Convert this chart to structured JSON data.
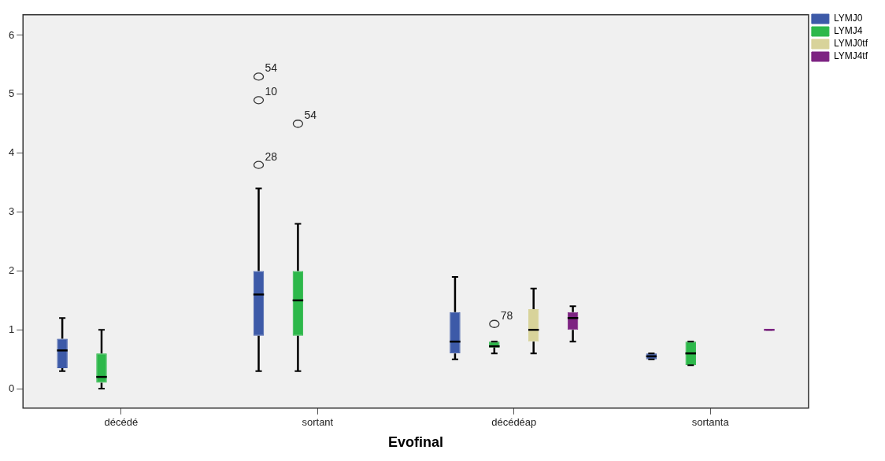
{
  "chart_data": {
    "type": "box",
    "xlabel": "Evofinal",
    "categories": [
      "décédé",
      "sortant",
      "décédéap",
      "sortanta"
    ],
    "series": [
      {
        "name": "LYMJ0",
        "color": "#3d5aa8",
        "boxes": [
          {
            "low": 0.3,
            "q1": 0.35,
            "median": 0.65,
            "q3": 0.85,
            "high": 1.2
          },
          {
            "low": 0.3,
            "q1": 0.9,
            "median": 1.6,
            "q3": 2.0,
            "high": 3.4,
            "outliers": [
              3.8,
              4.9,
              5.3
            ]
          },
          {
            "low": 0.5,
            "q1": 0.6,
            "median": 0.8,
            "q3": 1.3,
            "high": 1.9
          },
          {
            "low": 0.5,
            "q1": 0.5,
            "median": 0.55,
            "q3": 0.6,
            "high": 0.6
          }
        ]
      },
      {
        "name": "LYMJ4",
        "color": "#2db84a",
        "boxes": [
          {
            "low": 0,
            "q1": 0.1,
            "median": 0.2,
            "q3": 0.6,
            "high": 1.0
          },
          {
            "low": 0.3,
            "q1": 0.9,
            "median": 1.5,
            "q3": 2.0,
            "high": 2.8,
            "outliers": [
              4.5
            ]
          },
          {
            "low": 0.6,
            "q1": 0.7,
            "median": 0.72,
            "q3": 0.8,
            "high": 0.8,
            "outliers": [
              1.1
            ]
          },
          {
            "low": 0.4,
            "q1": 0.4,
            "median": 0.6,
            "q3": 0.8,
            "high": 0.8
          }
        ]
      },
      {
        "name": "LYMJ0tf",
        "color": "#d8d39a",
        "boxes": [
          null,
          null,
          {
            "low": 0.6,
            "q1": 0.8,
            "median": 1.0,
            "q3": 1.35,
            "high": 1.7
          },
          null
        ]
      },
      {
        "name": "LYMJ4tf",
        "color": "#7d2382",
        "boxes": [
          null,
          null,
          {
            "low": 0.8,
            "q1": 1.0,
            "median": 1.2,
            "q3": 1.3,
            "high": 1.4
          },
          {
            "low": 1.0,
            "q1": 1.0,
            "median": 1.0,
            "q3": 1.0,
            "high": 1.0
          }
        ]
      }
    ],
    "annotations": [
      "28",
      "10",
      "54",
      "54",
      "78"
    ],
    "ylim": [
      -0.33,
      6.35
    ],
    "yticks": [
      0,
      1,
      2,
      3,
      4,
      5,
      6
    ],
    "grid": false,
    "legend": "top right"
  }
}
